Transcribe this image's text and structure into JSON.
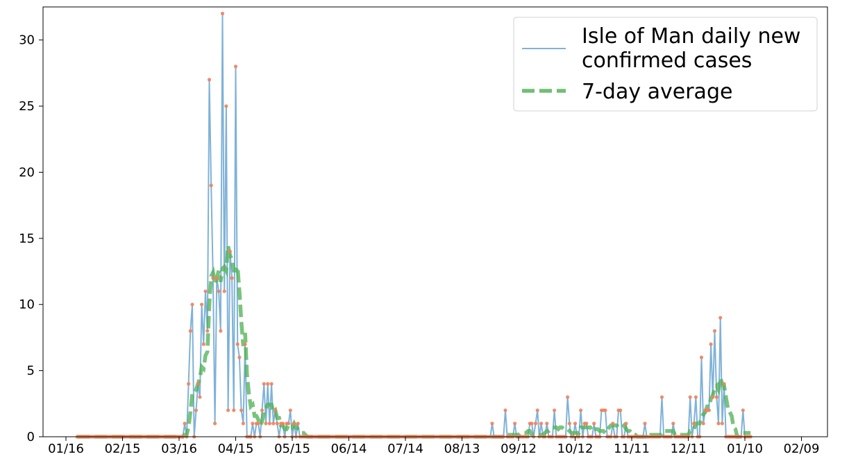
{
  "chart_data": {
    "type": "line",
    "x_start_date": "2020-01-22",
    "ylim": [
      0,
      32.5
    ],
    "yticks": [
      0,
      5,
      10,
      15,
      20,
      25,
      30
    ],
    "xticks": [
      "01/16",
      "02/15",
      "03/16",
      "04/15",
      "05/15",
      "06/14",
      "07/14",
      "08/13",
      "09/12",
      "10/12",
      "11/11",
      "12/11",
      "01/10",
      "02/09"
    ],
    "grid": false,
    "legend": {
      "placement": "top-right",
      "entries": [
        {
          "label_lines": [
            "Isle of Man daily new",
            "confirmed cases"
          ],
          "style": "line",
          "color": "#7fb2d8"
        },
        {
          "label_lines": [
            "7-day average"
          ],
          "style": "dashed",
          "color": "#4caf50"
        }
      ]
    },
    "series": [
      {
        "name": "Isle of Man daily new confirmed cases",
        "color": "#7fb2d8",
        "marker_color": "#f0825c",
        "values": [
          0,
          0,
          0,
          0,
          0,
          0,
          0,
          0,
          0,
          0,
          0,
          0,
          0,
          0,
          0,
          0,
          0,
          0,
          0,
          0,
          0,
          0,
          0,
          0,
          0,
          0,
          0,
          0,
          0,
          0,
          0,
          0,
          0,
          0,
          0,
          0,
          0,
          0,
          0,
          0,
          0,
          0,
          0,
          0,
          0,
          0,
          0,
          0,
          0,
          0,
          0,
          0,
          0,
          0,
          0,
          0,
          0,
          1,
          0,
          4,
          8,
          10,
          0,
          2,
          4,
          3,
          10,
          7,
          11,
          8,
          27,
          19,
          12,
          1,
          12,
          11,
          8,
          32,
          11,
          25,
          2,
          14,
          12,
          2,
          28,
          7,
          6,
          2,
          1,
          7,
          0,
          0,
          0,
          1,
          0,
          1,
          1,
          0,
          2,
          4,
          1,
          4,
          1,
          4,
          1,
          2,
          1,
          0,
          1,
          1,
          0,
          1,
          1,
          2,
          0,
          1,
          0,
          1,
          0,
          0,
          0,
          0,
          0,
          0,
          0,
          0,
          0,
          0,
          0,
          0,
          0,
          0,
          0,
          0,
          0,
          0,
          0,
          0,
          0,
          0,
          0,
          0,
          0,
          0,
          0,
          0,
          0,
          0,
          0,
          0,
          0,
          0,
          0,
          0,
          0,
          0,
          0,
          0,
          0,
          0,
          0,
          0,
          0,
          0,
          0,
          0,
          0,
          0,
          0,
          0,
          0,
          0,
          0,
          0,
          0,
          0,
          0,
          0,
          0,
          0,
          0,
          0,
          0,
          0,
          0,
          0,
          0,
          0,
          0,
          0,
          0,
          0,
          0,
          0,
          0,
          0,
          0,
          0,
          0,
          0,
          0,
          0,
          0,
          0,
          0,
          0,
          0,
          0,
          0,
          0,
          0,
          0,
          0,
          0,
          0,
          0,
          0,
          0,
          0,
          0,
          1,
          0,
          0,
          0,
          0,
          0,
          0,
          2,
          0,
          0,
          0,
          0,
          1,
          0,
          0,
          0,
          0,
          0,
          0,
          0,
          1,
          1,
          0,
          1,
          2,
          0,
          1,
          0,
          0,
          1,
          0,
          0,
          0,
          2,
          0,
          0,
          0,
          0,
          0,
          0,
          3,
          1,
          0,
          0,
          1,
          0,
          0,
          2,
          0,
          1,
          1,
          0,
          0,
          0,
          1,
          0,
          0,
          0,
          2,
          2,
          2,
          0,
          0,
          0,
          1,
          0,
          0,
          2,
          2,
          0,
          0,
          1,
          0,
          0,
          0,
          0,
          0,
          0,
          0,
          0,
          0,
          1,
          0,
          0,
          0,
          0,
          0,
          0,
          0,
          0,
          3,
          0,
          0,
          0,
          0,
          0,
          1,
          0,
          0,
          0,
          0,
          0,
          0,
          0,
          0,
          3,
          0,
          1,
          3,
          0,
          0,
          6,
          1,
          2,
          2,
          2,
          7,
          3,
          8,
          3,
          1,
          9,
          1,
          4,
          0,
          0,
          0,
          0,
          0,
          0,
          0,
          0,
          0,
          2,
          0,
          0,
          0,
          0
        ]
      },
      {
        "name": "7-day average",
        "color": "#4caf50",
        "values": [
          0,
          0,
          0,
          0,
          0,
          0,
          0,
          0,
          0,
          0,
          0,
          0,
          0,
          0,
          0,
          0,
          0,
          0,
          0,
          0,
          0,
          0,
          0,
          0,
          0,
          0,
          0,
          0,
          0,
          0,
          0,
          0,
          0,
          0,
          0,
          0,
          0,
          0,
          0,
          0,
          0,
          0,
          0,
          0,
          0,
          0,
          0,
          0,
          0,
          0,
          0,
          0,
          0,
          0,
          0,
          0,
          0,
          0.14,
          0.14,
          0.71,
          1.86,
          3.29,
          3.29,
          3.57,
          4.0,
          4.43,
          5.29,
          5.14,
          6.14,
          6.43,
          10.0,
          12.14,
          12.43,
          11.57,
          12.0,
          12.57,
          11.71,
          12.71,
          12.86,
          12.57,
          14.43,
          13.71,
          13.43,
          12.57,
          12.57,
          12.86,
          11.0,
          8.71,
          6.86,
          7.86,
          4.71,
          3.29,
          2.29,
          2.43,
          1.57,
          1.57,
          1.29,
          0.86,
          1.14,
          1.86,
          2.14,
          2.43,
          2.43,
          2.43,
          1.86,
          2.0,
          1.43,
          1.43,
          0.86,
          0.86,
          0.57,
          0.57,
          0.86,
          0.86,
          0.71,
          1.0,
          0.71,
          0.57,
          0.43,
          0.29,
          0.29,
          0.14,
          0,
          0,
          0,
          0,
          0,
          0,
          0,
          0,
          0,
          0,
          0,
          0,
          0,
          0,
          0,
          0,
          0,
          0,
          0,
          0,
          0,
          0,
          0,
          0,
          0,
          0,
          0,
          0,
          0,
          0,
          0,
          0,
          0,
          0,
          0,
          0,
          0,
          0,
          0,
          0,
          0,
          0,
          0,
          0,
          0,
          0,
          0,
          0,
          0,
          0,
          0,
          0,
          0,
          0,
          0,
          0,
          0,
          0,
          0,
          0,
          0,
          0,
          0,
          0,
          0,
          0,
          0,
          0,
          0,
          0,
          0,
          0,
          0,
          0,
          0,
          0,
          0,
          0,
          0,
          0,
          0,
          0,
          0,
          0,
          0,
          0,
          0,
          0,
          0,
          0,
          0,
          0,
          0,
          0,
          0,
          0,
          0,
          0,
          0,
          0,
          0,
          0,
          0,
          0,
          0,
          0,
          0.14,
          0.14,
          0.14,
          0.14,
          0.14,
          0.14,
          0.14,
          0.29,
          0.29,
          0.29,
          0.29,
          0.43,
          0.43,
          0.14,
          0.14,
          0.14,
          0.14,
          0.14,
          0.14,
          0.14,
          0.29,
          0.43,
          0.43,
          0.57,
          0.71,
          0.71,
          0.71,
          0.57,
          0.71,
          0.71,
          0.57,
          0.57,
          0.57,
          0.43,
          0.29,
          0.29,
          0.29,
          0.29,
          0.29,
          0.71,
          0.71,
          0.71,
          0.71,
          0.71,
          0.71,
          0.43,
          0.57,
          0.57,
          0.57,
          0.43,
          0.43,
          0.43,
          0.29,
          0.43,
          0.71,
          0.86,
          0.86,
          0.86,
          0.86,
          0.71,
          0.71,
          0.71,
          0.86,
          0.57,
          0.43,
          0.43,
          0.29,
          0.14,
          0.14,
          0,
          0,
          0,
          0,
          0,
          0,
          0,
          0.14,
          0.14,
          0.14,
          0.14,
          0.14,
          0.14,
          0.14,
          0.43,
          0.43,
          0.43,
          0.43,
          0.43,
          0.43,
          0.14,
          0.14,
          0.14,
          0.14,
          0.14,
          0.14,
          0.14,
          0.14,
          0.43,
          0.43,
          0.57,
          1.0,
          1.0,
          1.0,
          1.43,
          1.71,
          1.86,
          2.29,
          2.29,
          2.86,
          3.14,
          3.71,
          3.86,
          3.57,
          4.43,
          4.0,
          3.86,
          3.0,
          2.14,
          1.86,
          1.57,
          0.71,
          0.57,
          0,
          0,
          0.29,
          0.29,
          0.29,
          0.29,
          0.29,
          0.29
        ]
      }
    ]
  }
}
